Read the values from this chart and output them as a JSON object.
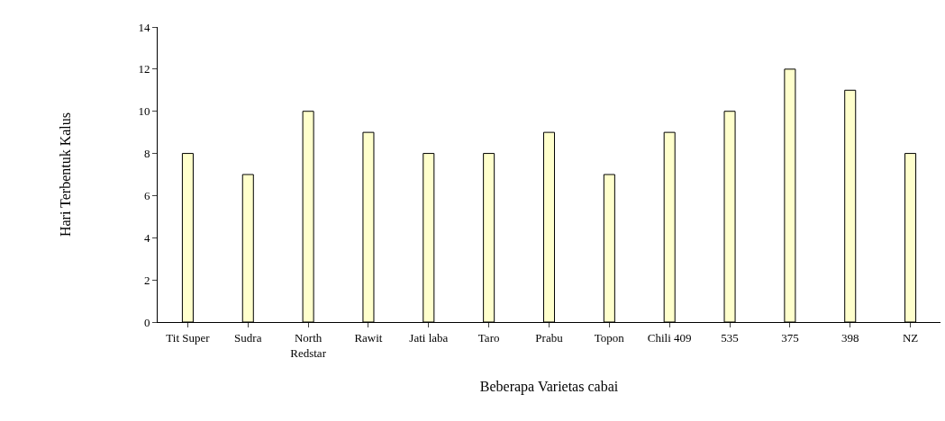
{
  "chart_data": {
    "type": "bar",
    "xlabel": "Beberapa Varietas cabai",
    "ylabel": "Hari Terbentuk Kalus",
    "categories": [
      "Tit Super",
      "Sudra",
      "North\nRedstar",
      "Rawit",
      "Jati laba",
      "Taro",
      "Prabu",
      "Topon",
      "Chili 409",
      "535",
      "375",
      "398",
      "NZ"
    ],
    "values": [
      8,
      7,
      10,
      9,
      8,
      8,
      9,
      7,
      9,
      10,
      12,
      11,
      8
    ],
    "color": "#ffffcc",
    "ylim": [
      0,
      14
    ],
    "yticks": [
      0,
      2,
      4,
      6,
      8,
      10,
      12,
      14
    ]
  }
}
